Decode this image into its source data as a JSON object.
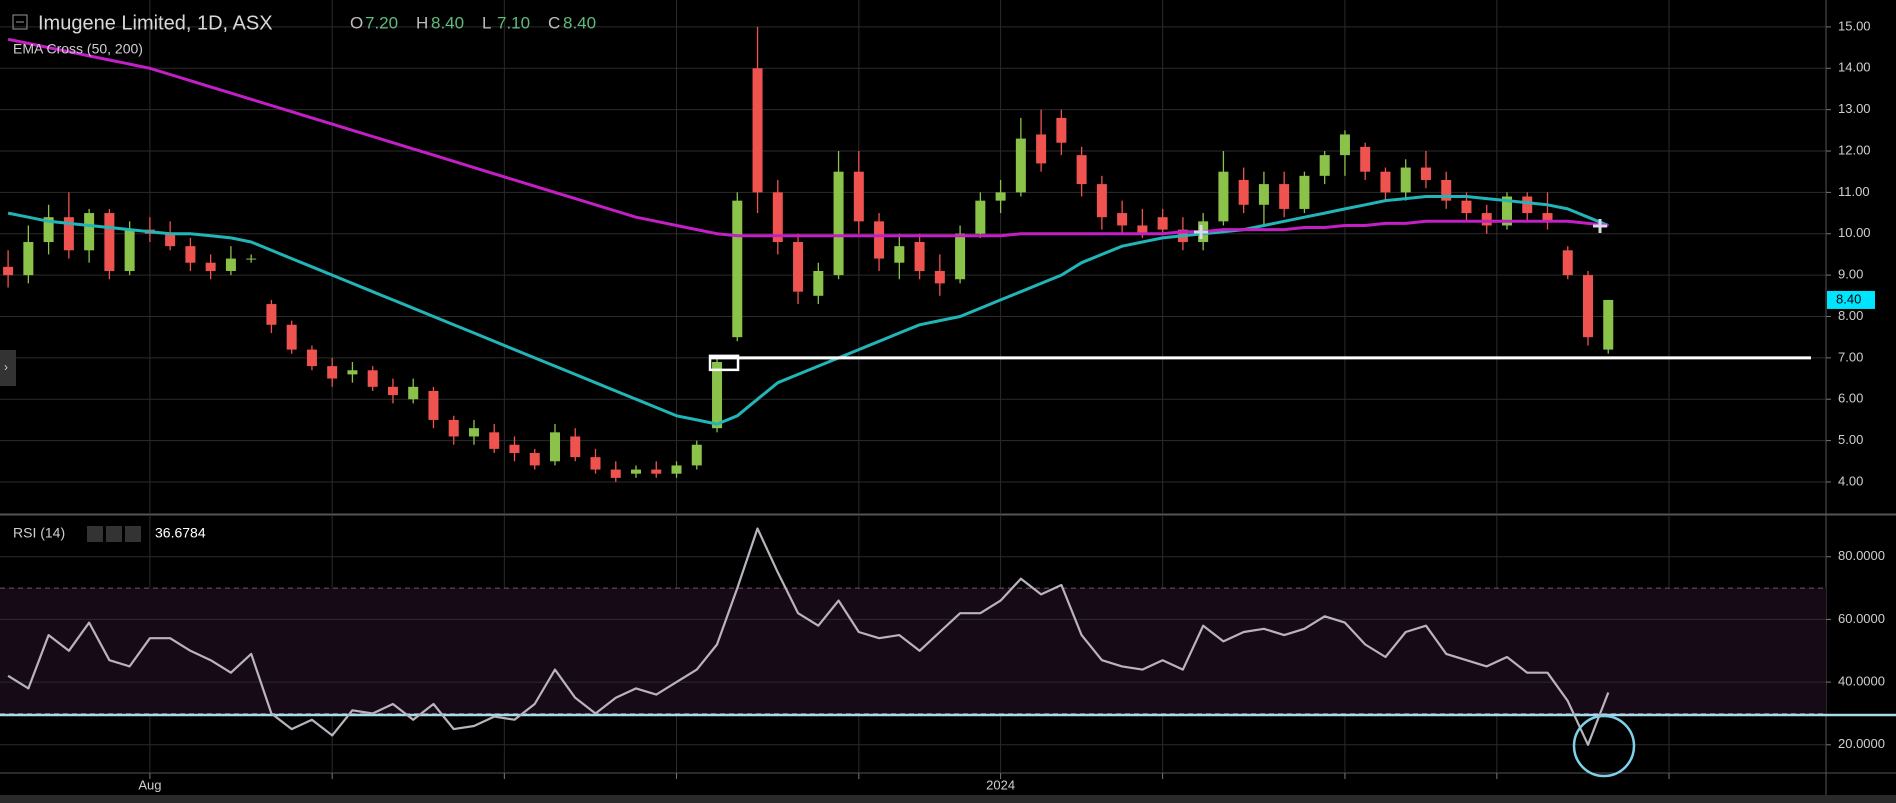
{
  "chart_data": [
    {
      "type": "candlestick",
      "title": "Imugene Limited, 1D, ASX",
      "subtitle": "EMA Cross (50, 200)",
      "ohlc_legend": [
        {
          "label": "O",
          "value": "7.20"
        },
        {
          "label": "H",
          "value": "8.40"
        },
        {
          "label": "L",
          "value": "7.10"
        },
        {
          "label": "C",
          "value": "8.40"
        }
      ],
      "last_price_label": "8.40",
      "up_color": "#8bc34a",
      "down_color": "#ef5350",
      "open": [
        9.2,
        9.0,
        9.8,
        10.4,
        9.6,
        10.5,
        9.1,
        10.1,
        10.0,
        9.7,
        9.3,
        9.1,
        9.4,
        8.3,
        7.8,
        7.2,
        6.8,
        6.6,
        6.7,
        6.3,
        6.0,
        6.2,
        5.5,
        5.1,
        5.2,
        4.9,
        4.7,
        4.5,
        5.1,
        4.6,
        4.3,
        4.2,
        4.3,
        4.2,
        4.4,
        5.3,
        7.5,
        14.0,
        11.0,
        9.8,
        8.5,
        9.0,
        11.5,
        10.3,
        9.3,
        9.8,
        9.1,
        8.9,
        10.0,
        10.8,
        11.0,
        12.4,
        12.8,
        11.9,
        11.2,
        10.5,
        10.2,
        10.4,
        10.1,
        9.8,
        10.3,
        11.3,
        10.7,
        11.2,
        10.6,
        11.4,
        11.9,
        12.1,
        11.5,
        11.0,
        11.6,
        11.3,
        10.8,
        10.5,
        10.2,
        10.9,
        10.5,
        9.6,
        9.0,
        7.2
      ],
      "high": [
        9.6,
        10.2,
        10.7,
        11.0,
        10.6,
        10.6,
        10.3,
        10.4,
        10.3,
        9.9,
        9.5,
        9.7,
        9.5,
        8.4,
        7.9,
        7.3,
        7.0,
        6.9,
        6.8,
        6.5,
        6.5,
        6.3,
        5.6,
        5.5,
        5.4,
        5.1,
        4.8,
        5.4,
        5.3,
        4.8,
        4.5,
        4.4,
        4.5,
        4.5,
        5.0,
        7.0,
        11.0,
        15.0,
        11.3,
        10.0,
        9.3,
        12.0,
        12.0,
        10.5,
        10.0,
        10.0,
        9.5,
        10.2,
        11.0,
        11.3,
        12.8,
        13.0,
        13.0,
        12.1,
        11.4,
        10.8,
        10.6,
        10.6,
        10.4,
        10.5,
        12.0,
        11.6,
        11.5,
        11.5,
        11.5,
        12.0,
        12.5,
        12.2,
        11.6,
        11.8,
        12.0,
        11.5,
        11.0,
        10.7,
        11.0,
        11.0,
        11.0,
        9.7,
        9.1,
        8.4
      ],
      "low": [
        8.7,
        8.8,
        9.5,
        9.4,
        9.3,
        8.9,
        9.0,
        9.8,
        9.6,
        9.1,
        8.9,
        9.0,
        9.3,
        7.6,
        7.1,
        6.7,
        6.3,
        6.4,
        6.2,
        5.9,
        5.9,
        5.3,
        4.9,
        4.9,
        4.7,
        4.5,
        4.3,
        4.4,
        4.5,
        4.2,
        4.0,
        4.1,
        4.1,
        4.1,
        4.3,
        5.2,
        7.4,
        10.5,
        9.5,
        8.3,
        8.3,
        8.9,
        10.0,
        9.1,
        8.9,
        8.9,
        8.5,
        8.8,
        9.9,
        10.5,
        10.9,
        11.5,
        11.9,
        10.9,
        10.1,
        10.0,
        9.9,
        10.0,
        9.6,
        9.6,
        10.2,
        10.5,
        10.2,
        10.4,
        10.5,
        11.2,
        11.4,
        11.3,
        10.8,
        10.8,
        11.1,
        10.6,
        10.3,
        10.0,
        10.1,
        10.3,
        10.1,
        8.9,
        7.3,
        7.1
      ],
      "close": [
        9.0,
        9.8,
        10.4,
        9.6,
        10.5,
        9.1,
        10.1,
        10.0,
        9.7,
        9.3,
        9.1,
        9.4,
        9.4,
        7.8,
        7.2,
        6.8,
        6.5,
        6.7,
        6.3,
        6.1,
        6.3,
        5.5,
        5.1,
        5.3,
        4.8,
        4.7,
        4.4,
        5.2,
        4.6,
        4.3,
        4.1,
        4.3,
        4.2,
        4.4,
        4.9,
        6.9,
        10.8,
        11.0,
        9.8,
        8.6,
        9.1,
        11.5,
        10.3,
        9.4,
        9.7,
        9.1,
        8.8,
        10.0,
        10.8,
        11.0,
        12.3,
        11.7,
        12.2,
        11.2,
        10.4,
        10.2,
        10.0,
        10.1,
        9.8,
        10.3,
        11.5,
        10.7,
        11.2,
        10.6,
        11.4,
        11.9,
        12.4,
        11.5,
        11.0,
        11.6,
        11.3,
        10.8,
        10.5,
        10.2,
        10.9,
        10.5,
        10.3,
        9.0,
        7.5,
        8.4
      ],
      "lines": [
        {
          "color": "#22b5b8",
          "values": [
            10.5,
            10.4,
            10.3,
            10.25,
            10.2,
            10.15,
            10.1,
            10.05,
            10.0,
            10.0,
            9.95,
            9.9,
            9.8,
            9.6,
            9.4,
            9.2,
            9.0,
            8.8,
            8.6,
            8.4,
            8.2,
            8.0,
            7.8,
            7.6,
            7.4,
            7.2,
            7.0,
            6.8,
            6.6,
            6.4,
            6.2,
            6.0,
            5.8,
            5.6,
            5.5,
            5.4,
            5.6,
            6.0,
            6.4,
            6.6,
            6.8,
            7.0,
            7.2,
            7.4,
            7.6,
            7.8,
            7.9,
            8.0,
            8.2,
            8.4,
            8.6,
            8.8,
            9.0,
            9.3,
            9.5,
            9.7,
            9.8,
            9.9,
            9.95,
            10.0,
            10.05,
            10.1,
            10.2,
            10.3,
            10.4,
            10.5,
            10.6,
            10.7,
            10.8,
            10.85,
            10.9,
            10.9,
            10.9,
            10.85,
            10.8,
            10.75,
            10.7,
            10.6,
            10.4,
            10.2
          ]
        },
        {
          "color": "#c21fc4",
          "values": [
            14.7,
            14.6,
            14.5,
            14.4,
            14.3,
            14.2,
            14.1,
            14.0,
            13.85,
            13.7,
            13.55,
            13.4,
            13.25,
            13.1,
            12.95,
            12.8,
            12.65,
            12.5,
            12.35,
            12.2,
            12.05,
            11.9,
            11.75,
            11.6,
            11.45,
            11.3,
            11.15,
            11.0,
            10.85,
            10.7,
            10.55,
            10.4,
            10.3,
            10.2,
            10.1,
            10.0,
            9.95,
            9.95,
            9.95,
            9.95,
            9.95,
            9.95,
            9.95,
            9.95,
            9.95,
            9.95,
            9.95,
            9.95,
            9.95,
            9.95,
            10.0,
            10.0,
            10.0,
            10.0,
            10.0,
            10.0,
            10.0,
            10.0,
            10.05,
            10.05,
            10.1,
            10.1,
            10.1,
            10.1,
            10.15,
            10.15,
            10.2,
            10.2,
            10.25,
            10.25,
            10.3,
            10.3,
            10.3,
            10.3,
            10.3,
            10.3,
            10.3,
            10.3,
            10.25,
            10.2
          ]
        }
      ],
      "hline": {
        "value": 7.0,
        "color": "#ffffff"
      },
      "xlim": [
        -0.4,
        89.75
      ],
      "ylim": [
        3.25,
        15.65
      ],
      "yticks": [
        {
          "value": 4,
          "label": "4.00"
        },
        {
          "value": 5,
          "label": "5.00"
        },
        {
          "value": 6,
          "label": "6.00"
        },
        {
          "value": 7,
          "label": "7.00"
        },
        {
          "value": 8,
          "label": "8.00"
        },
        {
          "value": 9,
          "label": "9.00"
        },
        {
          "value": 10,
          "label": "10.00"
        },
        {
          "value": 11,
          "label": "11.00"
        },
        {
          "value": 12,
          "label": "12.00"
        },
        {
          "value": 13,
          "label": "13.00"
        },
        {
          "value": 14,
          "label": "14.00"
        },
        {
          "value": 15,
          "label": "15.00"
        }
      ],
      "grid": true
    },
    {
      "type": "line",
      "title": "RSI (14)",
      "series": [
        {
          "color": "#b9b3bd",
          "values": [
            42,
            38,
            55,
            50,
            59,
            47,
            45,
            54,
            54,
            50,
            47,
            43,
            49,
            30,
            25,
            28,
            23,
            31,
            30,
            33,
            28,
            33,
            25,
            26,
            29,
            28,
            33,
            44,
            35,
            30,
            35,
            38,
            36,
            40,
            44,
            52,
            70,
            89,
            75,
            62,
            58,
            66,
            56,
            54,
            55,
            50,
            56,
            62,
            62,
            66,
            73,
            68,
            71,
            55,
            47,
            45,
            44,
            47,
            44,
            58,
            53,
            56,
            57,
            55,
            57,
            61,
            59,
            52,
            48,
            56,
            58,
            49,
            47,
            45,
            48,
            43,
            43,
            34,
            20,
            36.6784
          ]
        }
      ],
      "band": [
        30,
        70
      ],
      "band_color": "#170a17",
      "hline": {
        "value": 29.5,
        "color": "#a9dbe8"
      },
      "xlim": [
        -0.4,
        89.75
      ],
      "xticks": [
        {
          "value": 7,
          "label": "Aug"
        },
        {
          "value": 16,
          "label": null
        },
        {
          "value": 24.5,
          "label": null
        },
        {
          "value": 33,
          "label": null
        },
        {
          "value": 42,
          "label": null
        },
        {
          "value": 49,
          "label": "2024"
        },
        {
          "value": 57,
          "label": null
        },
        {
          "value": 66,
          "label": null
        },
        {
          "value": 73.5,
          "label": null
        },
        {
          "value": 82,
          "label": null
        }
      ],
      "ylim": [
        11,
        93
      ],
      "yticks": [
        {
          "value": 20,
          "label": "20.0000"
        },
        {
          "value": 40,
          "label": "40.0000"
        },
        {
          "value": 60,
          "label": "60.0000"
        },
        {
          "value": 80,
          "label": "80.0000"
        }
      ],
      "grid": true
    }
  ]
}
